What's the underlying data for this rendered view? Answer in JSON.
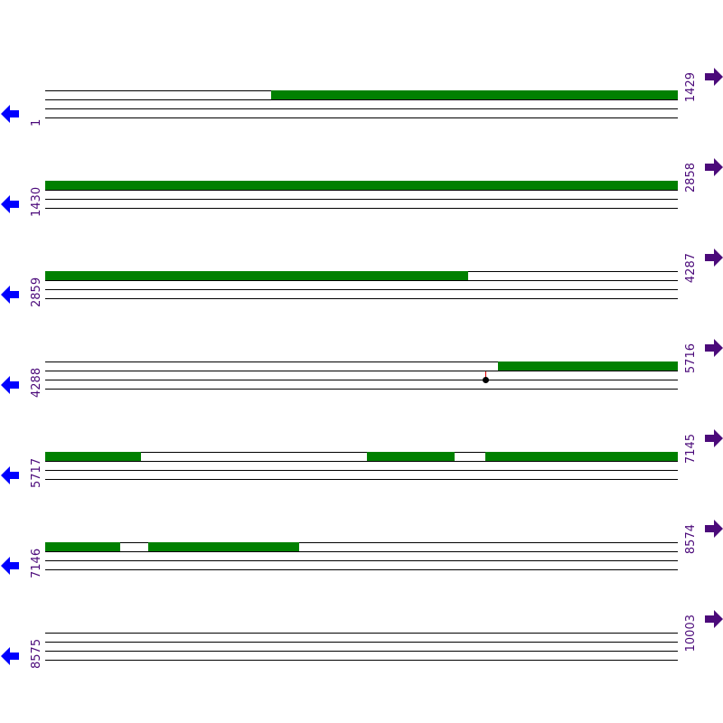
{
  "colors": {
    "feature": "#008000",
    "left_arrow": "#0000ff",
    "right_arrow": "#4b0a7a",
    "marker_stem": "#dd0000",
    "marker_dot": "#000000"
  },
  "bases_per_row": 1429,
  "rows": [
    {
      "start": "1",
      "end": "1429",
      "features": [
        [
          511,
          1429
        ]
      ],
      "markers": []
    },
    {
      "start": "1430",
      "end": "2858",
      "features": [
        [
          1430,
          2858
        ]
      ],
      "markers": []
    },
    {
      "start": "2859",
      "end": "4287",
      "features": [
        [
          2859,
          3814
        ]
      ],
      "markers": []
    },
    {
      "start": "4288",
      "end": "5716",
      "features": [
        [
          5311,
          5716
        ]
      ],
      "markers": [
        5282
      ]
    },
    {
      "start": "5717",
      "end": "7145",
      "features": [
        [
          5717,
          5933
        ],
        [
          6444,
          6640
        ],
        [
          6712,
          7145
        ]
      ],
      "markers": []
    },
    {
      "start": "7146",
      "end": "8574",
      "features": [
        [
          7146,
          7315
        ],
        [
          7379,
          7718
        ]
      ],
      "markers": []
    },
    {
      "start": "8575",
      "end": "10003",
      "features": [],
      "markers": []
    }
  ]
}
